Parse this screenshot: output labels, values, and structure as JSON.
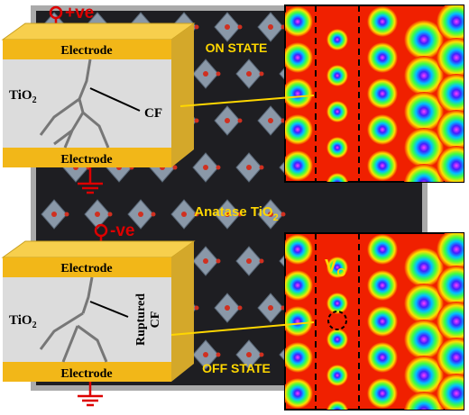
{
  "top_device": {
    "sign": "+ve",
    "electrode_top": "Electrode",
    "oxide": {
      "main": "TiO",
      "sub": "2"
    },
    "filament": "CF",
    "electrode_bottom": "Electrode"
  },
  "crystal": {
    "on_state": "ON STATE",
    "material": {
      "main": "Anatase TiO",
      "sub": "2"
    },
    "off_state": "OFF STATE"
  },
  "bottom_device": {
    "sign": "-ve",
    "electrode_top": "Electrode",
    "oxide": {
      "main": "TiO",
      "sub": "2"
    },
    "filament": {
      "line1": "Ruptured",
      "line2": "CF"
    },
    "electrode_bottom": "Electrode"
  },
  "contour": {
    "vacancy": {
      "main": "V",
      "sub": "O"
    }
  }
}
